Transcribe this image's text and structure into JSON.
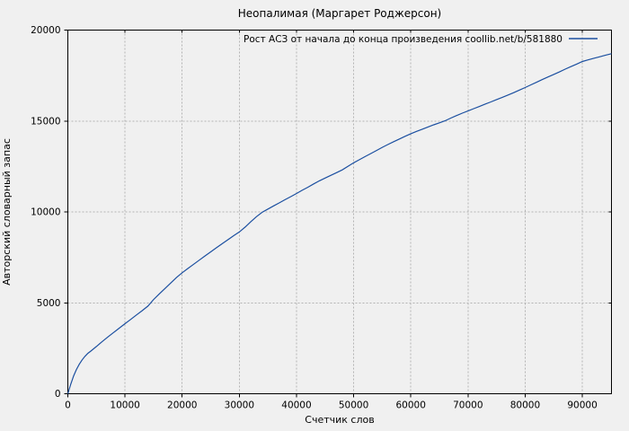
{
  "figure": {
    "background_color": "#f0f0f0",
    "border_color": "#000000",
    "grid_color": "#b3b3b3",
    "text_color": "#000000",
    "accent_color": "#1b4fa0"
  },
  "chart_data": {
    "type": "line",
    "title": "Неопалимая (Маргарет Роджерсон)",
    "xlabel": "Счетчик слов",
    "ylabel": "Авторский словарный запас",
    "grid": true,
    "legend_position": "top-right-inside",
    "xlim": [
      0,
      95100
    ],
    "ylim": [
      0,
      20000
    ],
    "x_ticks": [
      0,
      10000,
      20000,
      30000,
      40000,
      50000,
      60000,
      70000,
      80000,
      90000
    ],
    "y_ticks": [
      0,
      5000,
      10000,
      15000,
      20000
    ],
    "series": [
      {
        "name": "Рост АСЗ от начала до конца произведения coollib.net/b/581880",
        "color": "#1b4fa0",
        "points": [
          [
            0,
            0
          ],
          [
            500,
            520
          ],
          [
            1000,
            980
          ],
          [
            1500,
            1330
          ],
          [
            2000,
            1620
          ],
          [
            2500,
            1860
          ],
          [
            3000,
            2060
          ],
          [
            3500,
            2220
          ],
          [
            4000,
            2340
          ],
          [
            5000,
            2600
          ],
          [
            6000,
            2870
          ],
          [
            7000,
            3120
          ],
          [
            8000,
            3370
          ],
          [
            9000,
            3610
          ],
          [
            10000,
            3850
          ],
          [
            11000,
            4090
          ],
          [
            12000,
            4330
          ],
          [
            13000,
            4570
          ],
          [
            14000,
            4820
          ],
          [
            15000,
            5180
          ],
          [
            16000,
            5490
          ],
          [
            17000,
            5790
          ],
          [
            18000,
            6090
          ],
          [
            19000,
            6390
          ],
          [
            20000,
            6650
          ],
          [
            21000,
            6890
          ],
          [
            22000,
            7120
          ],
          [
            23000,
            7350
          ],
          [
            24000,
            7580
          ],
          [
            25000,
            7800
          ],
          [
            26000,
            8030
          ],
          [
            27000,
            8250
          ],
          [
            28000,
            8470
          ],
          [
            29000,
            8690
          ],
          [
            30000,
            8900
          ],
          [
            31000,
            9160
          ],
          [
            32000,
            9460
          ],
          [
            33000,
            9740
          ],
          [
            34000,
            9980
          ],
          [
            35000,
            10160
          ],
          [
            36000,
            10330
          ],
          [
            37000,
            10500
          ],
          [
            38000,
            10670
          ],
          [
            39000,
            10840
          ],
          [
            40000,
            11010
          ],
          [
            41000,
            11190
          ],
          [
            42000,
            11360
          ],
          [
            43000,
            11540
          ],
          [
            44000,
            11710
          ],
          [
            45000,
            11860
          ],
          [
            46000,
            12010
          ],
          [
            47000,
            12160
          ],
          [
            48000,
            12310
          ],
          [
            49000,
            12510
          ],
          [
            50000,
            12700
          ],
          [
            51000,
            12870
          ],
          [
            52000,
            13040
          ],
          [
            53000,
            13210
          ],
          [
            54000,
            13380
          ],
          [
            55000,
            13550
          ],
          [
            56000,
            13710
          ],
          [
            57000,
            13860
          ],
          [
            58000,
            14010
          ],
          [
            59000,
            14160
          ],
          [
            60000,
            14300
          ],
          [
            61000,
            14430
          ],
          [
            62000,
            14550
          ],
          [
            63000,
            14670
          ],
          [
            64000,
            14790
          ],
          [
            65000,
            14900
          ],
          [
            66000,
            15010
          ],
          [
            67000,
            15160
          ],
          [
            68000,
            15300
          ],
          [
            69000,
            15430
          ],
          [
            70000,
            15550
          ],
          [
            71000,
            15680
          ],
          [
            72000,
            15800
          ],
          [
            73000,
            15930
          ],
          [
            74000,
            16050
          ],
          [
            75000,
            16180
          ],
          [
            76000,
            16300
          ],
          [
            77000,
            16430
          ],
          [
            78000,
            16560
          ],
          [
            79000,
            16700
          ],
          [
            80000,
            16840
          ],
          [
            81000,
            16990
          ],
          [
            82000,
            17130
          ],
          [
            83000,
            17280
          ],
          [
            84000,
            17420
          ],
          [
            85000,
            17560
          ],
          [
            86000,
            17700
          ],
          [
            87000,
            17850
          ],
          [
            88000,
            17990
          ],
          [
            89000,
            18130
          ],
          [
            90000,
            18270
          ],
          [
            91000,
            18360
          ],
          [
            92000,
            18450
          ],
          [
            93000,
            18530
          ],
          [
            94000,
            18610
          ],
          [
            95100,
            18700
          ]
        ]
      }
    ]
  }
}
